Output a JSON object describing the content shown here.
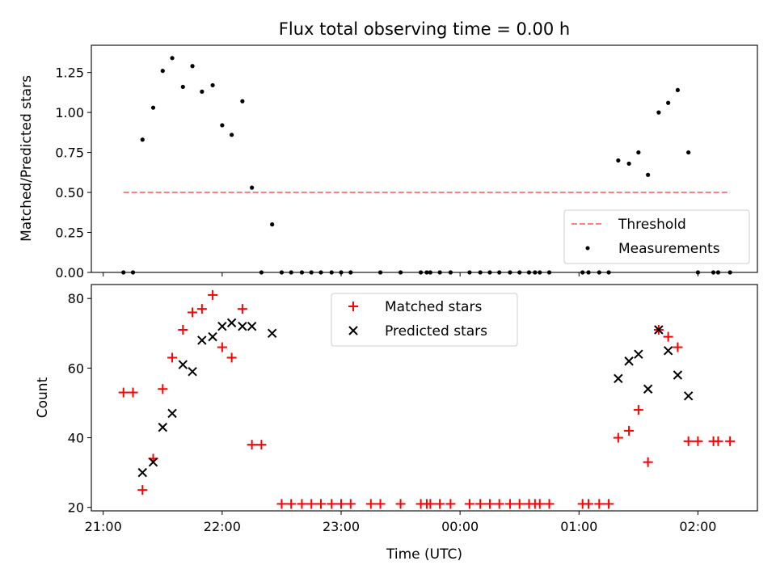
{
  "chart_data": [
    {
      "type": "scatter",
      "title": "Flux total observing time = 0.00 h",
      "xlabel": "",
      "ylabel": "Matched/Predicted stars",
      "xlim": [
        -0.1,
        5.5
      ],
      "ylim": [
        0,
        1.42
      ],
      "yticks": [
        0.0,
        0.25,
        0.5,
        0.75,
        1.0,
        1.25
      ],
      "ytick_labels": [
        "0.00",
        "0.25",
        "0.50",
        "0.75",
        "1.00",
        "1.25"
      ],
      "legend_position": "lower-right",
      "series": [
        {
          "name": "Threshold",
          "kind": "dashed-line",
          "color": "#ff7f7f",
          "x": [
            0.17,
            5.27
          ],
          "y": [
            0.5,
            0.5
          ]
        },
        {
          "name": "Measurements",
          "kind": "dot",
          "color": "#000000",
          "x": [
            0.17,
            0.25,
            0.33,
            0.42,
            0.5,
            0.58,
            0.67,
            0.75,
            0.83,
            0.92,
            1.0,
            1.08,
            1.17,
            1.25,
            1.33,
            1.42,
            1.5,
            1.58,
            1.67,
            1.75,
            1.83,
            1.92,
            2.0,
            2.08,
            2.33,
            2.5,
            2.67,
            2.72,
            2.75,
            2.83,
            2.92,
            3.08,
            3.17,
            3.25,
            3.33,
            3.42,
            3.5,
            3.58,
            3.63,
            3.67,
            3.75,
            4.03,
            4.08,
            4.17,
            4.25,
            4.33,
            4.42,
            4.5,
            4.58,
            4.67,
            4.75,
            4.83,
            4.92,
            5.0,
            5.13,
            5.17,
            5.27
          ],
          "y": [
            0,
            0,
            0.83,
            1.03,
            1.26,
            1.34,
            1.16,
            1.29,
            1.13,
            1.17,
            0.92,
            0.86,
            1.07,
            0.53,
            0,
            0.3,
            0,
            0,
            0,
            0,
            0,
            0,
            0,
            0,
            0,
            0,
            0,
            0,
            0,
            0,
            0,
            0,
            0,
            0,
            0,
            0,
            0,
            0,
            0,
            0,
            0,
            0,
            0,
            0,
            0,
            0.7,
            0.68,
            0.75,
            0.61,
            1.0,
            1.06,
            1.14,
            0.75,
            0,
            0,
            0,
            0
          ]
        }
      ]
    },
    {
      "type": "scatter",
      "title": "",
      "xlabel": "Time (UTC)",
      "ylabel": "Count",
      "xlim": [
        -0.1,
        5.5
      ],
      "ylim": [
        19,
        84
      ],
      "yticks": [
        20,
        40,
        60,
        80
      ],
      "ytick_labels": [
        "20",
        "40",
        "60",
        "80"
      ],
      "xticks": [
        0,
        1,
        2,
        3,
        4,
        5
      ],
      "xtick_labels": [
        "21:00",
        "22:00",
        "23:00",
        "00:00",
        "01:00",
        "02:00"
      ],
      "legend_position": "upper-center",
      "series": [
        {
          "name": "Matched stars",
          "kind": "plus",
          "color": "#ff0000",
          "x": [
            0.17,
            0.25,
            0.33,
            0.42,
            0.5,
            0.58,
            0.67,
            0.75,
            0.83,
            0.92,
            1.0,
            1.08,
            1.17,
            1.25,
            1.33,
            1.5,
            1.58,
            1.67,
            1.75,
            1.83,
            1.92,
            2.0,
            2.08,
            2.25,
            2.33,
            2.5,
            2.67,
            2.72,
            2.75,
            2.83,
            2.92,
            3.08,
            3.17,
            3.25,
            3.33,
            3.42,
            3.5,
            3.58,
            3.63,
            3.67,
            3.75,
            4.03,
            4.08,
            4.17,
            4.25,
            4.33,
            4.42,
            4.5,
            4.58,
            4.67,
            4.75,
            4.83,
            4.92,
            5.0,
            5.13,
            5.17,
            5.27
          ],
          "y": [
            53,
            53,
            25,
            34,
            54,
            63,
            71,
            76,
            77,
            81,
            66,
            63,
            77,
            38,
            38,
            21,
            21,
            21,
            21,
            21,
            21,
            21,
            21,
            21,
            21,
            21,
            21,
            21,
            21,
            21,
            21,
            21,
            21,
            21,
            21,
            21,
            21,
            21,
            21,
            21,
            21,
            21,
            21,
            21,
            21,
            40,
            42,
            48,
            33,
            71,
            69,
            66,
            39,
            39,
            39,
            39,
            39
          ]
        },
        {
          "name": "Predicted stars",
          "kind": "x",
          "color": "#000000",
          "x": [
            0.33,
            0.42,
            0.5,
            0.58,
            0.67,
            0.75,
            0.83,
            0.92,
            1.0,
            1.08,
            1.17,
            1.25,
            1.42,
            4.33,
            4.42,
            4.5,
            4.58,
            4.67,
            4.75,
            4.83,
            4.92
          ],
          "y": [
            30,
            33,
            43,
            47,
            61,
            59,
            68,
            69,
            72,
            73,
            72,
            72,
            70,
            57,
            62,
            64,
            54,
            71,
            65,
            58,
            52
          ]
        }
      ]
    }
  ]
}
